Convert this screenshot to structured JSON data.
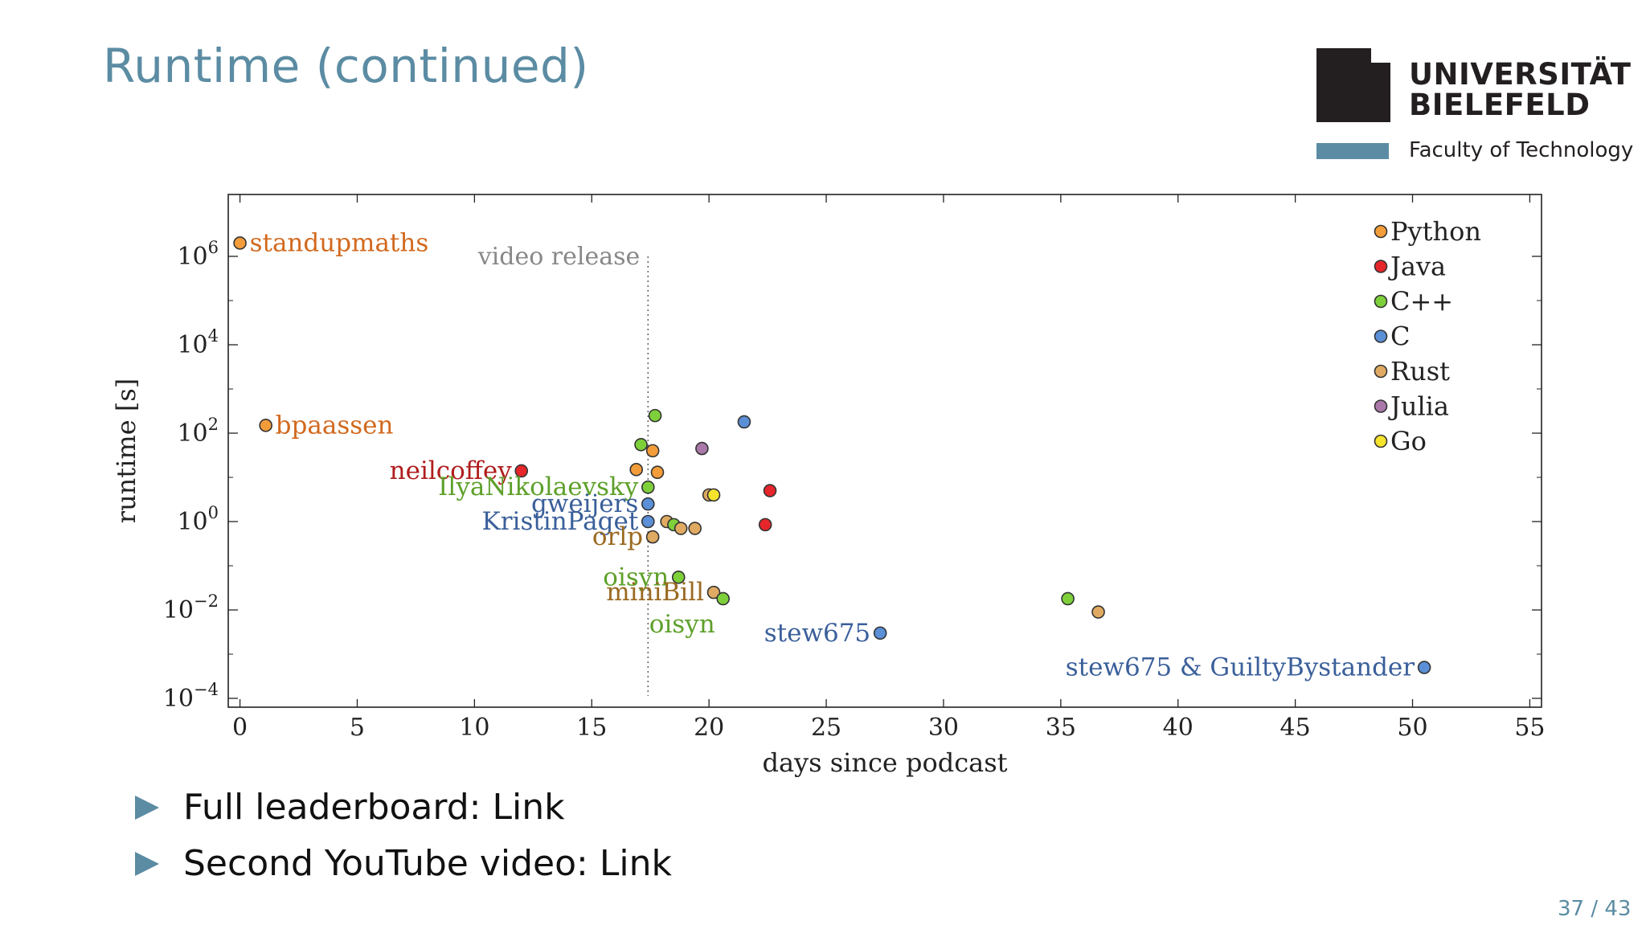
{
  "slide": {
    "title": "Runtime (continued)",
    "page_number": "37 / 43",
    "bullets": [
      {
        "text": "Full leaderboard: ",
        "link": "Link"
      },
      {
        "text": "Second YouTube video: ",
        "link": "Link"
      }
    ]
  },
  "logo": {
    "line1": "UNIVERSITÄT",
    "line2": "BIELEFELD",
    "faculty": "Faculty of Technology",
    "colors": {
      "mark": "#231f20",
      "accent": "#5b8ca3"
    }
  },
  "chart_data": {
    "type": "scatter",
    "xlabel": "days since podcast",
    "ylabel": "runtime [s]",
    "xlim": [
      -0.5,
      55.5
    ],
    "ylim_log10": [
      -4.2,
      7.4
    ],
    "y_scale": "log",
    "x_ticks": [
      0,
      5,
      10,
      15,
      20,
      25,
      30,
      35,
      40,
      45,
      50,
      55
    ],
    "y_ticks": [
      {
        "base": "10",
        "exp": "6"
      },
      {
        "base": "10",
        "exp": "4"
      },
      {
        "base": "10",
        "exp": "2"
      },
      {
        "base": "10",
        "exp": "0"
      },
      {
        "base": "10",
        "exp": "−2"
      },
      {
        "base": "10",
        "exp": "−4"
      }
    ],
    "grid": false,
    "legend_position": "top-right",
    "vline": {
      "x": 17.4,
      "label": "video release"
    },
    "series": [
      {
        "name": "Python",
        "color": "#f39c3a"
      },
      {
        "name": "Java",
        "color": "#e6262b"
      },
      {
        "name": "C++",
        "color": "#7ed03a"
      },
      {
        "name": "C",
        "color": "#5b8fd6"
      },
      {
        "name": "Rust",
        "color": "#e0aa62"
      },
      {
        "name": "Julia",
        "color": "#a978a8"
      },
      {
        "name": "Go",
        "color": "#f5e32c"
      }
    ],
    "points": [
      {
        "x": 0.0,
        "y": 2000000,
        "series": "Python",
        "label": "standupmaths",
        "label_side": "right",
        "label_color": "#d2691e"
      },
      {
        "x": 1.1,
        "y": 150,
        "series": "Python",
        "label": "bpaassen",
        "label_side": "right",
        "label_color": "#d2691e"
      },
      {
        "x": 12.0,
        "y": 14,
        "series": "Java",
        "label": "neilcoffey",
        "label_side": "left",
        "label_color": "#b01c1c"
      },
      {
        "x": 17.4,
        "y": 6,
        "series": "C++",
        "label": "IlyaNikolaevsky",
        "label_side": "left",
        "label_color": "#5ea02a"
      },
      {
        "x": 17.4,
        "y": 2.5,
        "series": "C",
        "label": "gweijers",
        "label_side": "left",
        "label_color": "#3a5f9a"
      },
      {
        "x": 17.4,
        "y": 1.0,
        "series": "C",
        "label": "KristinPaget",
        "label_side": "left",
        "label_color": "#3a5f9a"
      },
      {
        "x": 17.6,
        "y": 0.45,
        "series": "Rust",
        "label": "orlp",
        "label_side": "left",
        "label_color": "#9a6a22"
      },
      {
        "x": 18.7,
        "y": 0.055,
        "series": "C++",
        "label": "oisyn",
        "label_side": "left",
        "label_color": "#5ea02a"
      },
      {
        "x": 20.2,
        "y": 0.025,
        "series": "Rust",
        "label": "miniBill",
        "label_side": "left",
        "label_color": "#9a6a22"
      },
      {
        "x": 20.6,
        "y": 0.018,
        "series": "C++",
        "label": "oisyn",
        "label_side": "below",
        "label_color": "#5ea02a"
      },
      {
        "x": 27.3,
        "y": 0.003,
        "series": "C",
        "label": "stew675",
        "label_side": "left",
        "label_color": "#3a5f9a"
      },
      {
        "x": 50.5,
        "y": 0.0005,
        "series": "C",
        "label": "stew675 & GuiltyBystander",
        "label_side": "left",
        "label_color": "#3a5f9a"
      },
      {
        "x": 17.7,
        "y": 250,
        "series": "C++"
      },
      {
        "x": 21.5,
        "y": 180,
        "series": "C"
      },
      {
        "x": 17.1,
        "y": 55,
        "series": "C++"
      },
      {
        "x": 17.6,
        "y": 40,
        "series": "Python"
      },
      {
        "x": 19.7,
        "y": 45,
        "series": "Julia"
      },
      {
        "x": 16.9,
        "y": 15,
        "series": "Python"
      },
      {
        "x": 17.8,
        "y": 13,
        "series": "Python"
      },
      {
        "x": 22.6,
        "y": 5,
        "series": "Java"
      },
      {
        "x": 20.0,
        "y": 4,
        "series": "Rust"
      },
      {
        "x": 20.2,
        "y": 4,
        "series": "Go"
      },
      {
        "x": 22.4,
        "y": 0.85,
        "series": "Java"
      },
      {
        "x": 18.2,
        "y": 1.0,
        "series": "Rust"
      },
      {
        "x": 18.5,
        "y": 0.85,
        "series": "C++"
      },
      {
        "x": 18.8,
        "y": 0.7,
        "series": "Rust"
      },
      {
        "x": 19.4,
        "y": 0.7,
        "series": "Rust"
      },
      {
        "x": 35.3,
        "y": 0.018,
        "series": "C++"
      },
      {
        "x": 36.6,
        "y": 0.009,
        "series": "Rust"
      }
    ]
  }
}
